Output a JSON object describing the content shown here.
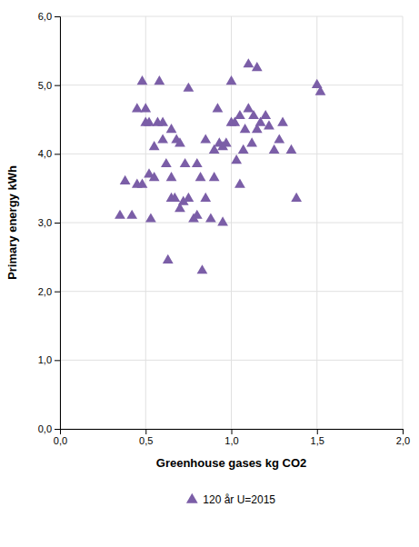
{
  "chart_data": {
    "type": "scatter",
    "x": [
      0.35,
      0.38,
      0.42,
      0.45,
      0.45,
      0.48,
      0.48,
      0.5,
      0.5,
      0.52,
      0.52,
      0.53,
      0.55,
      0.55,
      0.57,
      0.58,
      0.6,
      0.6,
      0.62,
      0.63,
      0.65,
      0.65,
      0.65,
      0.67,
      0.68,
      0.7,
      0.7,
      0.72,
      0.73,
      0.75,
      0.75,
      0.78,
      0.8,
      0.8,
      0.82,
      0.83,
      0.85,
      0.85,
      0.88,
      0.9,
      0.9,
      0.92,
      0.93,
      0.95,
      0.95,
      0.97,
      1.0,
      1.0,
      1.02,
      1.03,
      1.05,
      1.05,
      1.07,
      1.08,
      1.1,
      1.1,
      1.12,
      1.13,
      1.15,
      1.15,
      1.17,
      1.2,
      1.22,
      1.25,
      1.28,
      1.3,
      1.35,
      1.38,
      1.5,
      1.52
    ],
    "series": [
      {
        "name": "120 år U=2015",
        "color": "#7B5EA7",
        "marker": "triangle",
        "values": [
          3.1,
          3.6,
          3.1,
          4.65,
          3.55,
          3.55,
          5.05,
          4.65,
          4.45,
          3.7,
          4.45,
          3.05,
          4.1,
          3.65,
          4.45,
          5.05,
          4.45,
          4.2,
          3.85,
          2.45,
          3.35,
          3.65,
          4.35,
          3.35,
          4.2,
          3.2,
          4.15,
          3.3,
          3.85,
          3.35,
          4.95,
          3.05,
          3.85,
          3.1,
          3.65,
          2.3,
          3.35,
          4.2,
          3.05,
          3.65,
          4.05,
          4.65,
          4.15,
          3.0,
          4.1,
          4.15,
          5.05,
          4.45,
          4.45,
          3.9,
          3.55,
          4.55,
          4.05,
          4.35,
          4.65,
          5.3,
          4.15,
          4.55,
          4.35,
          5.25,
          4.45,
          4.55,
          4.4,
          4.05,
          4.2,
          4.45,
          4.05,
          3.35,
          5.0,
          4.9
        ]
      }
    ],
    "xlabel": "Greenhouse gases kg CO2",
    "ylabel": "Primary energy kWh",
    "xlim": [
      0.0,
      2.0
    ],
    "ylim": [
      0.0,
      6.0
    ],
    "xticks": [
      {
        "value": 0.0,
        "label": "0,0"
      },
      {
        "value": 0.5,
        "label": "0,5"
      },
      {
        "value": 1.0,
        "label": "1,0"
      },
      {
        "value": 1.5,
        "label": "1,5"
      },
      {
        "value": 2.0,
        "label": "2,0"
      }
    ],
    "yticks": [
      {
        "value": 0.0,
        "label": "0,0"
      },
      {
        "value": 1.0,
        "label": "1,0"
      },
      {
        "value": 2.0,
        "label": "2,0"
      },
      {
        "value": 3.0,
        "label": "3,0"
      },
      {
        "value": 4.0,
        "label": "4,0"
      },
      {
        "value": 5.0,
        "label": "5,0"
      },
      {
        "value": 6.0,
        "label": "6,0"
      }
    ],
    "grid": true,
    "legend": "bottom"
  }
}
